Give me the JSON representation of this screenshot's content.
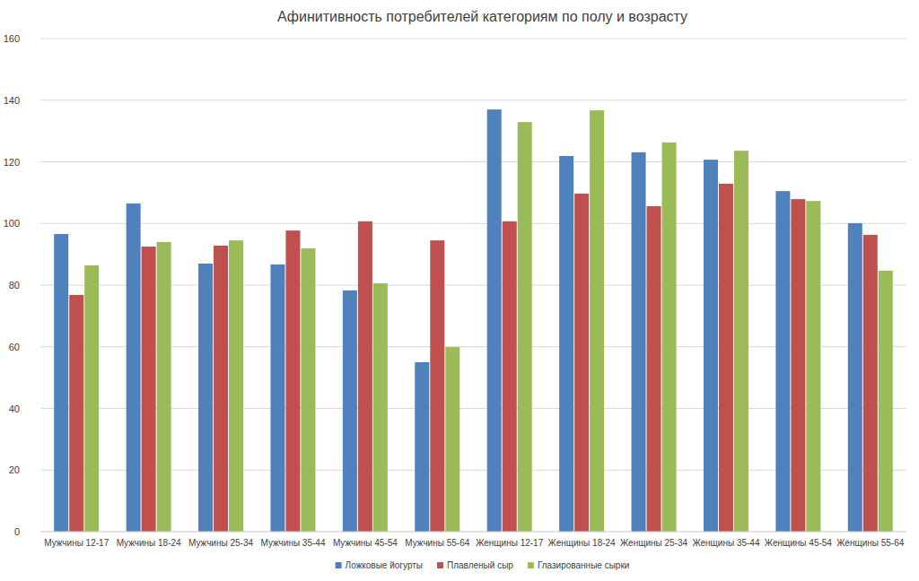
{
  "chart_data": {
    "type": "bar",
    "title": "Афинитивность потребителей категориям по полу и возрасту",
    "categories": [
      "Мужчины 12-17",
      "Мужчины 18-24",
      "Мужчины 25-34",
      "Мужчины 35-44",
      "Мужчины 45-54",
      "Мужчины 55-64",
      "Женщины 12-17",
      "Женщины 18-24",
      "Женщины 25-34",
      "Женщины 35-44",
      "Женщины 45-54",
      "Женщины 55-64"
    ],
    "series": [
      {
        "name": "Ложковые йогурты",
        "color": "#4f81bd",
        "values": [
          96.6,
          106.5,
          87.0,
          86.7,
          78.3,
          55.0,
          137.0,
          121.9,
          123.1,
          120.7,
          110.5,
          100.1
        ]
      },
      {
        "name": "Плавленый сыр",
        "color": "#c0504d",
        "values": [
          76.8,
          92.5,
          92.8,
          97.7,
          100.7,
          94.5,
          100.7,
          109.7,
          105.6,
          112.9,
          107.9,
          96.3
        ]
      },
      {
        "name": "Глазированные сырки",
        "color": "#9bbb59",
        "values": [
          86.4,
          94.0,
          94.5,
          91.9,
          80.6,
          59.9,
          132.9,
          136.7,
          126.3,
          123.6,
          107.3,
          84.7
        ]
      }
    ],
    "ylim": [
      0,
      160
    ],
    "yticks": [
      0,
      20,
      40,
      60,
      80,
      100,
      120,
      140,
      160
    ],
    "grid": true,
    "legend": "bottom"
  }
}
